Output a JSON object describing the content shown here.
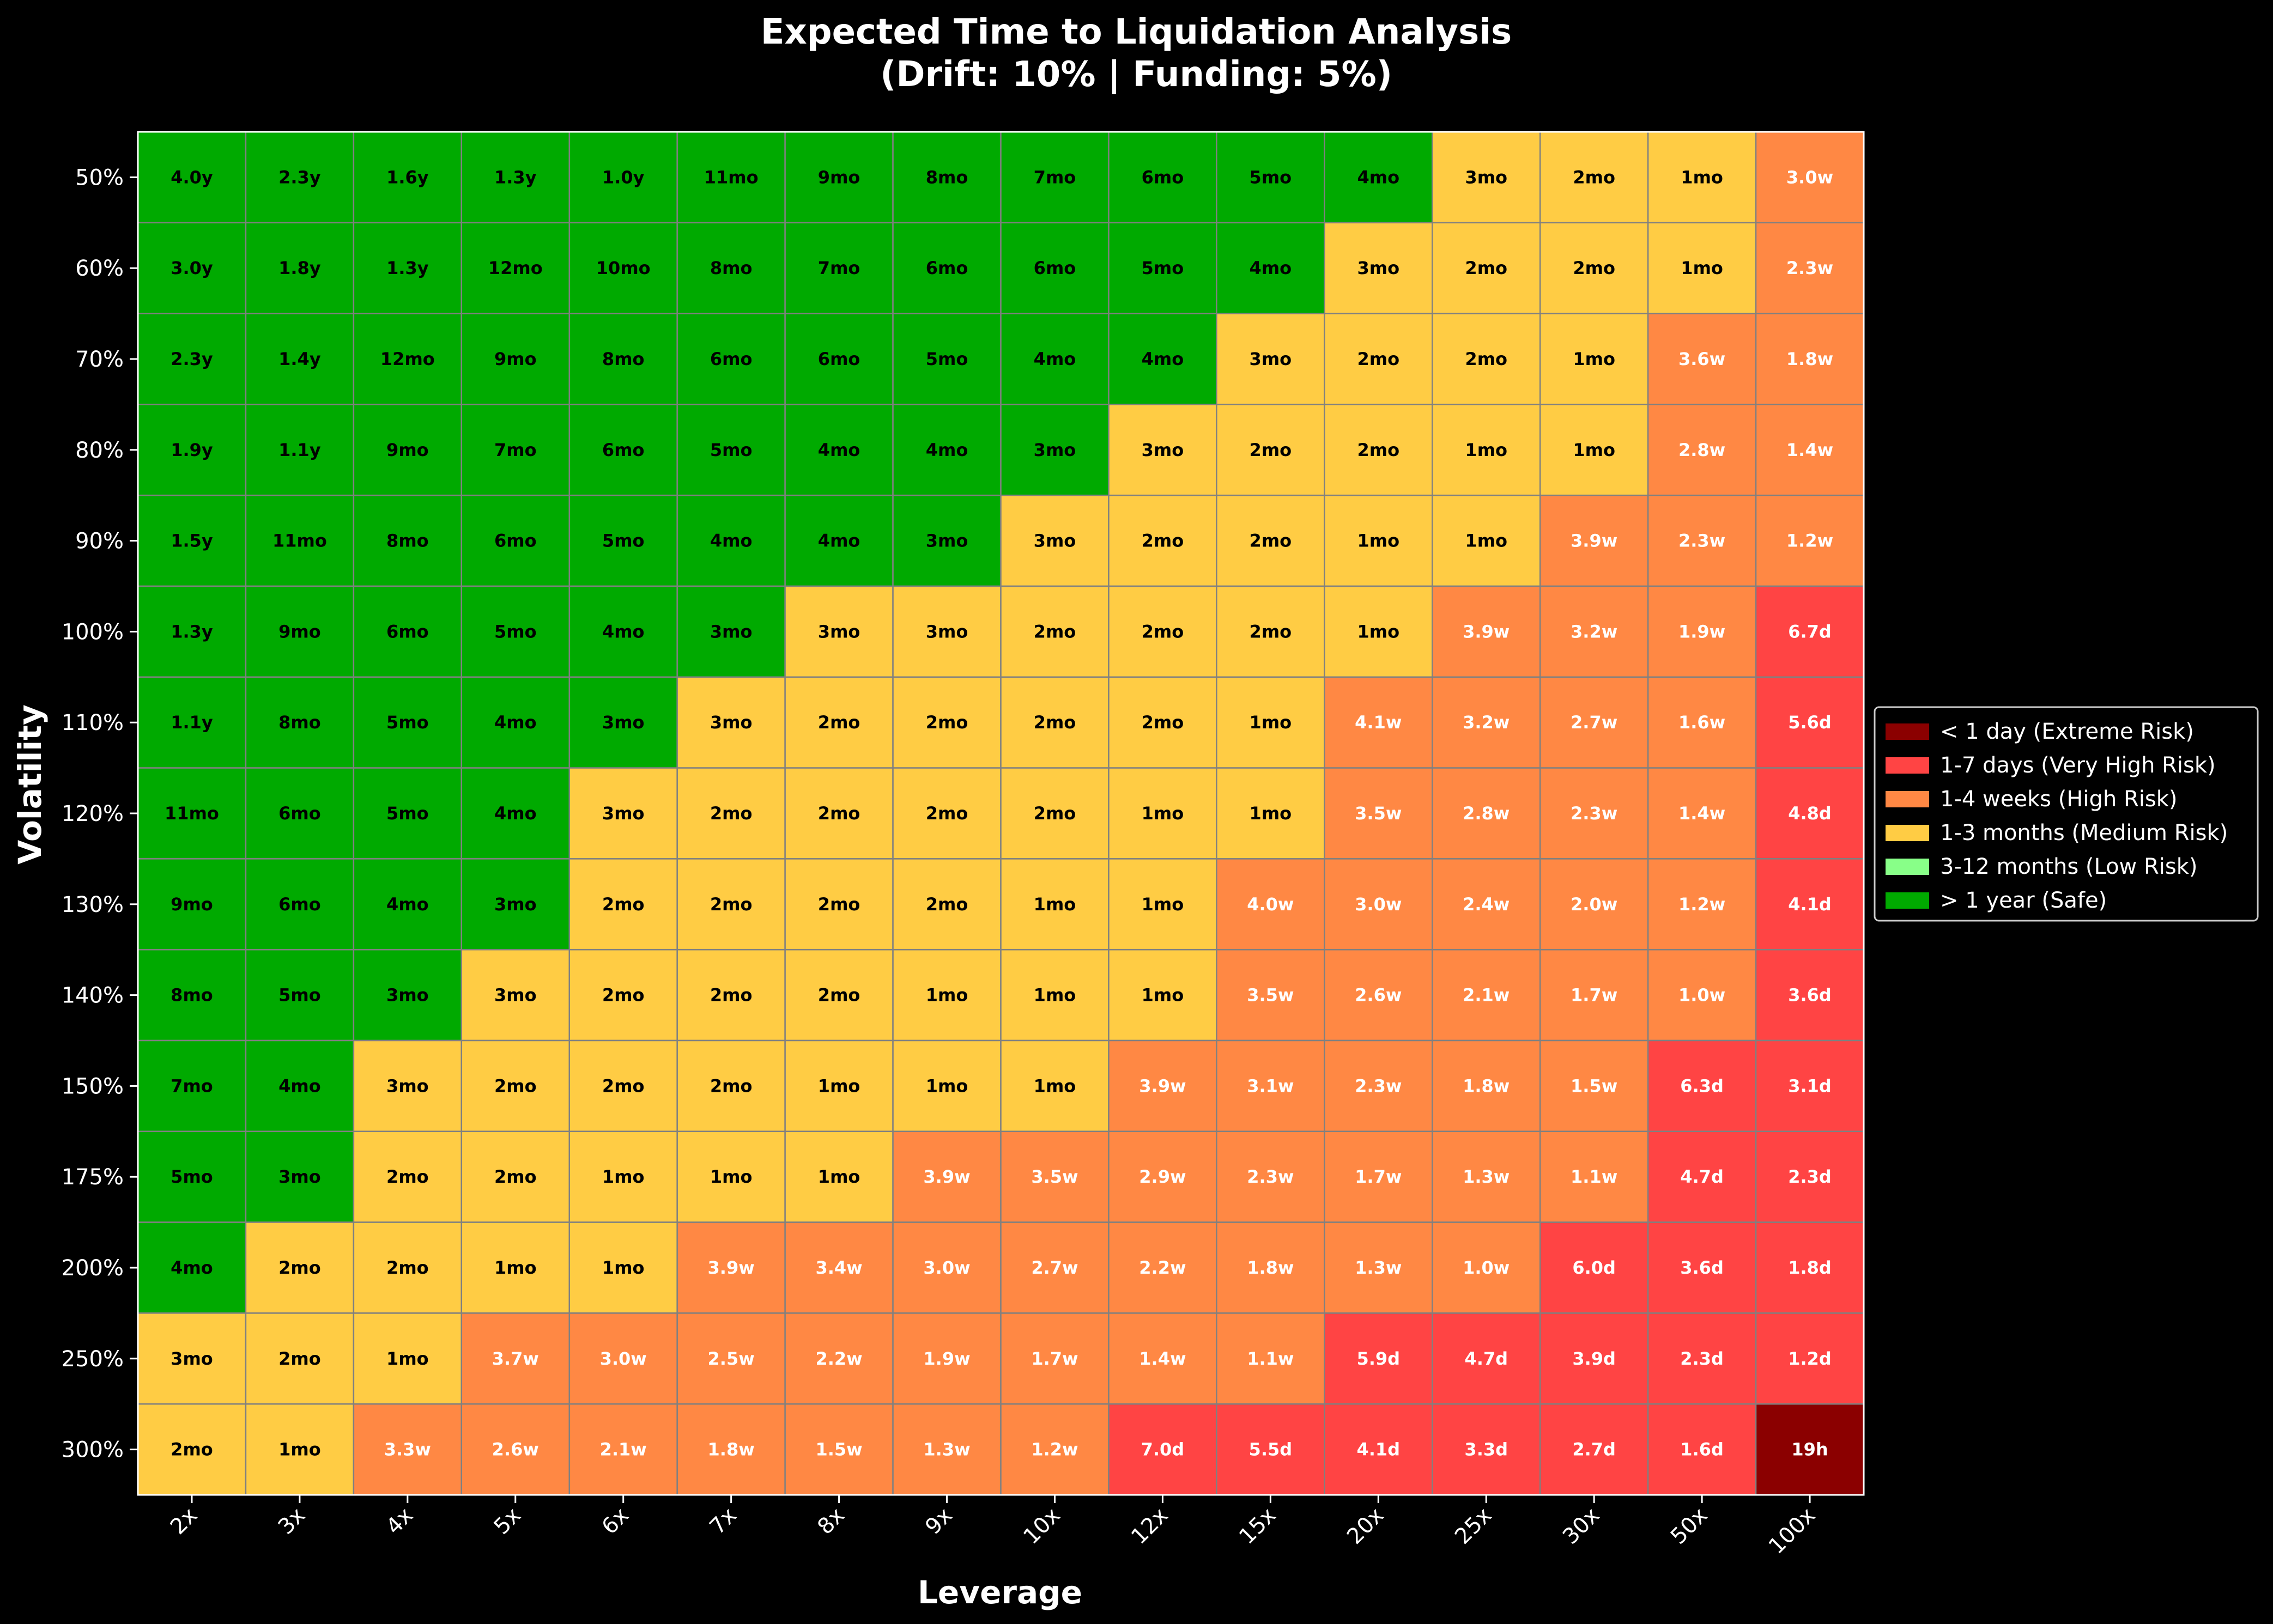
{
  "chart_data": {
    "type": "heatmap",
    "title": "Expected Time to Liquidation Analysis",
    "subtitle": "(Drift: 10% | Funding: 5%)",
    "xlabel": "Leverage",
    "ylabel": "Volatility",
    "x_categories": [
      "2x",
      "3x",
      "4x",
      "5x",
      "6x",
      "7x",
      "8x",
      "9x",
      "10x",
      "12x",
      "15x",
      "20x",
      "25x",
      "30x",
      "50x",
      "100x"
    ],
    "y_categories": [
      "50%",
      "60%",
      "70%",
      "80%",
      "90%",
      "100%",
      "110%",
      "120%",
      "130%",
      "140%",
      "150%",
      "175%",
      "200%",
      "250%",
      "300%"
    ],
    "values": [
      [
        "4.0y",
        "2.3y",
        "1.6y",
        "1.3y",
        "1.0y",
        "11mo",
        "9mo",
        "8mo",
        "7mo",
        "6mo",
        "5mo",
        "4mo",
        "3mo",
        "2mo",
        "1mo",
        "3.0w"
      ],
      [
        "3.0y",
        "1.8y",
        "1.3y",
        "12mo",
        "10mo",
        "8mo",
        "7mo",
        "6mo",
        "6mo",
        "5mo",
        "4mo",
        "3mo",
        "2mo",
        "2mo",
        "1mo",
        "2.3w"
      ],
      [
        "2.3y",
        "1.4y",
        "12mo",
        "9mo",
        "8mo",
        "6mo",
        "6mo",
        "5mo",
        "4mo",
        "4mo",
        "3mo",
        "2mo",
        "2mo",
        "1mo",
        "3.6w",
        "1.8w"
      ],
      [
        "1.9y",
        "1.1y",
        "9mo",
        "7mo",
        "6mo",
        "5mo",
        "4mo",
        "4mo",
        "3mo",
        "3mo",
        "2mo",
        "2mo",
        "1mo",
        "1mo",
        "2.8w",
        "1.4w"
      ],
      [
        "1.5y",
        "11mo",
        "8mo",
        "6mo",
        "5mo",
        "4mo",
        "4mo",
        "3mo",
        "3mo",
        "2mo",
        "2mo",
        "1mo",
        "1mo",
        "3.9w",
        "2.3w",
        "1.2w"
      ],
      [
        "1.3y",
        "9mo",
        "6mo",
        "5mo",
        "4mo",
        "3mo",
        "3mo",
        "3mo",
        "2mo",
        "2mo",
        "2mo",
        "1mo",
        "3.9w",
        "3.2w",
        "1.9w",
        "6.7d"
      ],
      [
        "1.1y",
        "8mo",
        "5mo",
        "4mo",
        "3mo",
        "3mo",
        "2mo",
        "2mo",
        "2mo",
        "2mo",
        "1mo",
        "4.1w",
        "3.2w",
        "2.7w",
        "1.6w",
        "5.6d"
      ],
      [
        "11mo",
        "6mo",
        "5mo",
        "4mo",
        "3mo",
        "2mo",
        "2mo",
        "2mo",
        "2mo",
        "1mo",
        "1mo",
        "3.5w",
        "2.8w",
        "2.3w",
        "1.4w",
        "4.8d"
      ],
      [
        "9mo",
        "6mo",
        "4mo",
        "3mo",
        "2mo",
        "2mo",
        "2mo",
        "2mo",
        "1mo",
        "1mo",
        "4.0w",
        "3.0w",
        "2.4w",
        "2.0w",
        "1.2w",
        "4.1d"
      ],
      [
        "8mo",
        "5mo",
        "3mo",
        "3mo",
        "2mo",
        "2mo",
        "2mo",
        "1mo",
        "1mo",
        "1mo",
        "3.5w",
        "2.6w",
        "2.1w",
        "1.7w",
        "1.0w",
        "3.6d"
      ],
      [
        "7mo",
        "4mo",
        "3mo",
        "2mo",
        "2mo",
        "2mo",
        "1mo",
        "1mo",
        "1mo",
        "3.9w",
        "3.1w",
        "2.3w",
        "1.8w",
        "1.5w",
        "6.3d",
        "3.1d"
      ],
      [
        "5mo",
        "3mo",
        "2mo",
        "2mo",
        "1mo",
        "1mo",
        "1mo",
        "3.9w",
        "3.5w",
        "2.9w",
        "2.3w",
        "1.7w",
        "1.3w",
        "1.1w",
        "4.7d",
        "2.3d"
      ],
      [
        "4mo",
        "2mo",
        "2mo",
        "1mo",
        "1mo",
        "3.9w",
        "3.4w",
        "3.0w",
        "2.7w",
        "2.2w",
        "1.8w",
        "1.3w",
        "1.0w",
        "6.0d",
        "3.6d",
        "1.8d"
      ],
      [
        "3mo",
        "2mo",
        "1mo",
        "3.7w",
        "3.0w",
        "2.5w",
        "2.2w",
        "1.9w",
        "1.7w",
        "1.4w",
        "1.1w",
        "5.9d",
        "4.7d",
        "3.9d",
        "2.3d",
        "1.2d"
      ],
      [
        "2mo",
        "1mo",
        "3.3w",
        "2.6w",
        "2.1w",
        "1.8w",
        "1.5w",
        "1.3w",
        "1.2w",
        "7.0d",
        "5.5d",
        "4.1d",
        "3.3d",
        "2.7d",
        "1.6d",
        "19h"
      ]
    ],
    "categories_legend": [
      {
        "label": "< 1 day (Extreme Risk)",
        "color": "#8b0000",
        "text_color": "#ffffff"
      },
      {
        "label": "1-7 days (Very High Risk)",
        "color": "#ff4444",
        "text_color": "#ffffff"
      },
      {
        "label": "1-4 weeks (High Risk)",
        "color": "#ff8844",
        "text_color": "#ffffff"
      },
      {
        "label": "1-3 months (Medium Risk)",
        "color": "#ffcc44",
        "text_color": "#000000"
      },
      {
        "label": "3-12 months (Low Risk)",
        "color": "#88ff88",
        "text_color": "#000000"
      },
      {
        "label": "> 1 year (Safe)",
        "color": "#00aa00",
        "text_color": "#000000"
      }
    ],
    "cell_categories": [
      [
        5,
        5,
        5,
        5,
        5,
        5,
        5,
        5,
        5,
        5,
        5,
        5,
        3,
        3,
        3,
        2
      ],
      [
        5,
        5,
        5,
        5,
        5,
        5,
        5,
        5,
        5,
        5,
        5,
        3,
        3,
        3,
        3,
        2
      ],
      [
        5,
        5,
        5,
        5,
        5,
        5,
        5,
        5,
        5,
        5,
        3,
        3,
        3,
        3,
        2,
        2
      ],
      [
        5,
        5,
        5,
        5,
        5,
        5,
        5,
        5,
        5,
        3,
        3,
        3,
        3,
        3,
        2,
        2
      ],
      [
        5,
        5,
        5,
        5,
        5,
        5,
        5,
        5,
        3,
        3,
        3,
        3,
        3,
        2,
        2,
        2
      ],
      [
        5,
        5,
        5,
        5,
        5,
        5,
        3,
        3,
        3,
        3,
        3,
        3,
        2,
        2,
        2,
        1
      ],
      [
        5,
        5,
        5,
        5,
        5,
        3,
        3,
        3,
        3,
        3,
        3,
        2,
        2,
        2,
        2,
        1
      ],
      [
        5,
        5,
        5,
        5,
        3,
        3,
        3,
        3,
        3,
        3,
        3,
        2,
        2,
        2,
        2,
        1
      ],
      [
        5,
        5,
        5,
        5,
        3,
        3,
        3,
        3,
        3,
        3,
        2,
        2,
        2,
        2,
        2,
        1
      ],
      [
        5,
        5,
        5,
        3,
        3,
        3,
        3,
        3,
        3,
        3,
        2,
        2,
        2,
        2,
        2,
        1
      ],
      [
        5,
        5,
        3,
        3,
        3,
        3,
        3,
        3,
        3,
        2,
        2,
        2,
        2,
        2,
        1,
        1
      ],
      [
        5,
        5,
        3,
        3,
        3,
        3,
        3,
        2,
        2,
        2,
        2,
        2,
        2,
        2,
        1,
        1
      ],
      [
        5,
        3,
        3,
        3,
        3,
        2,
        2,
        2,
        2,
        2,
        2,
        2,
        2,
        1,
        1,
        1
      ],
      [
        3,
        3,
        3,
        2,
        2,
        2,
        2,
        2,
        2,
        2,
        2,
        1,
        1,
        1,
        1,
        1
      ],
      [
        3,
        3,
        2,
        2,
        2,
        2,
        2,
        2,
        2,
        1,
        1,
        1,
        1,
        1,
        1,
        0
      ]
    ],
    "grid": true,
    "legend_position": "center-right",
    "colors": {
      "background": "#000000",
      "grid_line": "#808080",
      "text": "#ffffff"
    }
  }
}
